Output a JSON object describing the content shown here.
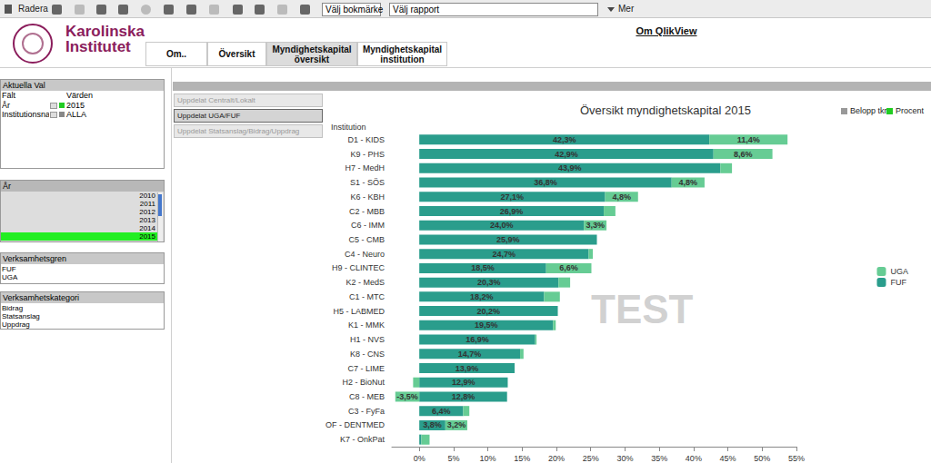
{
  "toolbar": {
    "clear": "Radera",
    "bookmark": "Välj bokmärke",
    "report": "Välj rapport",
    "more": "Mer"
  },
  "header": {
    "logo_lines": [
      "Karolinska",
      "Institutet"
    ],
    "link": "Om QlikView"
  },
  "tabs": [
    "Om..",
    "Översikt",
    "Myndighetskapital översikt",
    "Myndighetskapital institution"
  ],
  "active_tab": "Myndighetskapital översikt",
  "current_selections": {
    "title": "Aktuella Val",
    "columns": [
      "Fält",
      "Värden"
    ],
    "rows": [
      [
        "År",
        "2015"
      ],
      [
        "Institutionsna",
        "ALLA"
      ]
    ]
  },
  "year_list": {
    "title": "År",
    "items": [
      "2010",
      "2011",
      "2012",
      "2013",
      "2014",
      "2015"
    ],
    "selected": "2015"
  },
  "business_branch": {
    "title": "Verksamhetsgren",
    "items": [
      "FUF",
      "UGA"
    ]
  },
  "business_category": {
    "title": "Verksamhetskategori",
    "items": [
      "Bidrag",
      "Statsanslag",
      "Uppdrag"
    ]
  },
  "buttons": [
    "Uppdelat Centralt/Lokalt",
    "Uppdelat UGA/FUF",
    "Uppdelat Statsanslag/Bidrag/Uppdrag"
  ],
  "active_button": "Uppdelat UGA/FUF",
  "chart_toggles": [
    "Belopp tkr",
    "Procent"
  ],
  "watermark": "TEST",
  "chart_data": {
    "type": "bar",
    "orientation": "horizontal",
    "stacked": true,
    "title": "Översikt myndighetskapital 2015",
    "ylabel": "Institution",
    "categories": [
      "D1 - KIDS",
      "K9 - PHS",
      "H7 - MedH",
      "S1 - SÖS",
      "K6 - KBH",
      "C2 - MBB",
      "C6 - IMM",
      "C5 - CMB",
      "C4 - Neuro",
      "H9 - CLINTEC",
      "K2 - MedS",
      "C1 - MTC",
      "H5 - LABMED",
      "K1 - MMK",
      "H1 - NVS",
      "K8 - CNS",
      "C7 - LIME",
      "H2 - BioNut",
      "C8 - MEB",
      "C3 - FyFa",
      "OF - DENTMED",
      "K7 - OnkPat"
    ],
    "series": [
      {
        "name": "FUF",
        "color": "#2a9d8c",
        "values": [
          42.3,
          42.9,
          43.9,
          36.8,
          27.1,
          26.9,
          24.0,
          25.9,
          24.7,
          18.5,
          20.3,
          18.2,
          20.2,
          19.5,
          16.9,
          14.7,
          13.9,
          12.9,
          12.8,
          6.4,
          3.8,
          0.3
        ],
        "value_labels": [
          "42,3%",
          "42,9%",
          "43,9%",
          "36,8%",
          "27,1%",
          "26,9%",
          "24,0%",
          "25,9%",
          "24,7%",
          "18,5%",
          "20,3%",
          "18,2%",
          "20,2%",
          "19,5%",
          "16,9%",
          "14,7%",
          "13,9%",
          "12,9%",
          "12,8%",
          "6,4%",
          "3,8%",
          null
        ]
      },
      {
        "name": "UGA",
        "color": "#66cc94",
        "values": [
          11.4,
          8.6,
          1.7,
          4.8,
          4.8,
          1.7,
          3.3,
          0,
          0.6,
          6.6,
          1.7,
          2.3,
          0,
          0.4,
          0.2,
          0.5,
          0,
          -0.9,
          -3.5,
          0.9,
          3.2,
          1.2
        ],
        "value_labels": [
          "11,4%",
          "8,6%",
          null,
          "4,8%",
          "4,8%",
          null,
          "3,3%",
          null,
          null,
          "6,6%",
          null,
          null,
          null,
          null,
          null,
          null,
          null,
          null,
          "-3,5%",
          null,
          "3,2%",
          null
        ]
      }
    ],
    "xlim": [
      -4,
      55
    ],
    "xticks": [
      {
        "value": 0,
        "label": "0%"
      },
      {
        "value": 5,
        "label": "5%"
      },
      {
        "value": 10,
        "label": "10%"
      },
      {
        "value": 15,
        "label": "15%"
      },
      {
        "value": 20,
        "label": "20%"
      },
      {
        "value": 25,
        "label": "25%"
      },
      {
        "value": 30,
        "label": "30%"
      },
      {
        "value": 35,
        "label": "35%"
      },
      {
        "value": 40,
        "label": "40%"
      },
      {
        "value": 45,
        "label": "45%"
      },
      {
        "value": 50,
        "label": "50%"
      },
      {
        "value": 55,
        "label": "55%"
      }
    ],
    "grid": false,
    "legend": "right",
    "data_labels": true
  }
}
